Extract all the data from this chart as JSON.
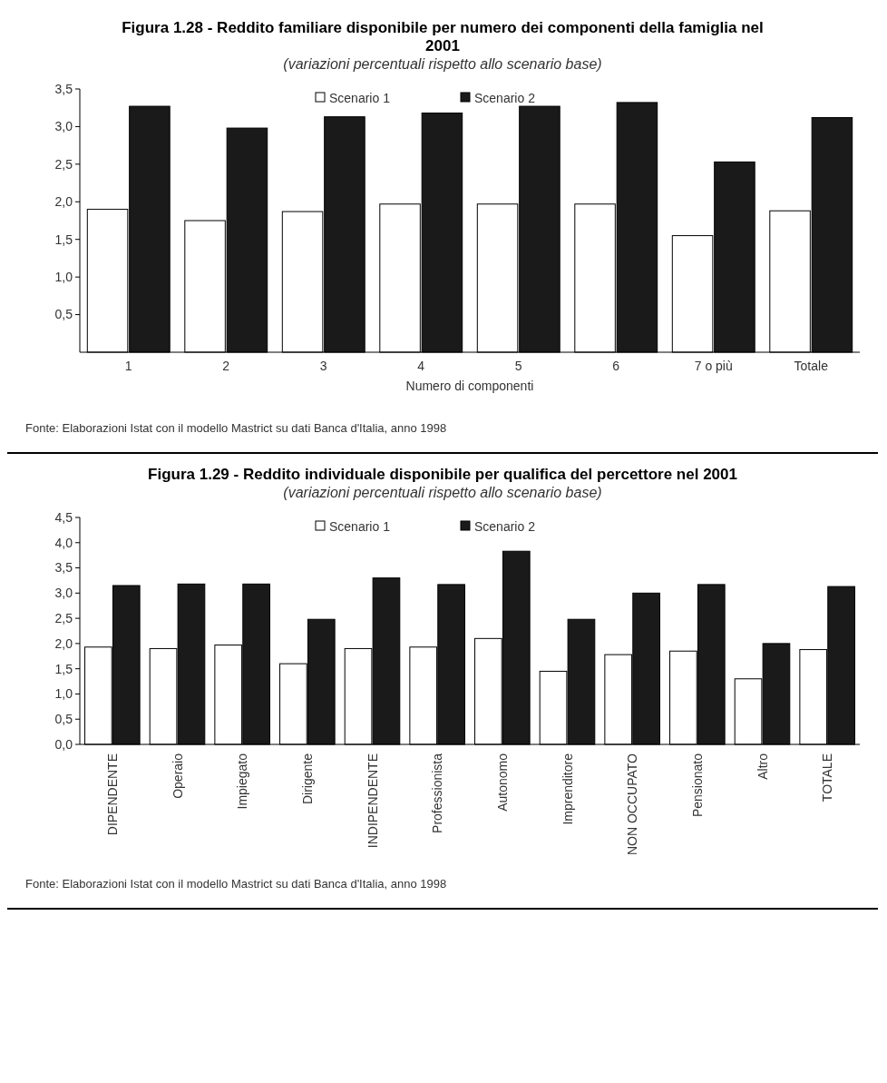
{
  "chart_data": [
    {
      "type": "bar",
      "title": "Figura 1.28 - Reddito familiare disponibile per numero dei componenti della famiglia nel 2001",
      "subtitle": "(variazioni percentuali rispetto allo scenario base)",
      "xlabel": "Numero di componenti",
      "categories": [
        "1",
        "2",
        "3",
        "4",
        "5",
        "6",
        "7 o più",
        "Totale"
      ],
      "series": [
        {
          "name": "Scenario 1",
          "color": "#ffffff",
          "values": [
            1.9,
            1.75,
            1.87,
            1.97,
            1.97,
            1.97,
            1.55,
            1.88
          ]
        },
        {
          "name": "Scenario 2",
          "color": "#1a1a1a",
          "values": [
            3.27,
            2.98,
            3.13,
            3.18,
            3.27,
            3.32,
            2.53,
            3.12
          ]
        }
      ],
      "ylim": [
        0,
        3.5
      ],
      "yticks": [
        {
          "value": 0.5,
          "label": "0,5"
        },
        {
          "value": 1,
          "label": "1,0"
        },
        {
          "value": 1.5,
          "label": "1,5"
        },
        {
          "value": 2,
          "label": "2,0"
        },
        {
          "value": 2.5,
          "label": "2,5"
        },
        {
          "value": 3,
          "label": "3,0"
        },
        {
          "value": 3.5,
          "label": "3,5"
        }
      ],
      "legend": "top",
      "grid": false,
      "annotations": [
        "Fonte: Elaborazioni Istat con il modello Mastrict su dati Banca d'Italia, anno 1998"
      ]
    },
    {
      "type": "bar",
      "title": "Figura 1.29 - Reddito individuale disponibile per qualifica del percettore nel 2001",
      "subtitle": "(variazioni percentuali rispetto allo scenario base)",
      "categories": [
        "DIPENDENTE",
        "Operaio",
        "Impiegato",
        "Dirigente",
        "INDIPENDENTE",
        "Professionista",
        "Autonomo",
        "Imprenditore",
        "NON OCCUPATO",
        "Pensionato",
        "Altro",
        "TOTALE"
      ],
      "series": [
        {
          "name": "Scenario 1",
          "color": "#ffffff",
          "values": [
            1.93,
            1.9,
            1.97,
            1.6,
            1.9,
            1.93,
            2.1,
            1.45,
            1.78,
            1.85,
            1.3,
            1.88
          ]
        },
        {
          "name": "Scenario 2",
          "color": "#1a1a1a",
          "values": [
            3.15,
            3.18,
            3.18,
            2.48,
            3.3,
            3.17,
            3.83,
            2.48,
            3.0,
            3.17,
            2.0,
            3.13
          ]
        }
      ],
      "ylim": [
        0,
        4.5
      ],
      "yticks": [
        {
          "value": 0,
          "label": "0,0"
        },
        {
          "value": 0.5,
          "label": "0,5"
        },
        {
          "value": 1,
          "label": "1,0"
        },
        {
          "value": 1.5,
          "label": "1,5"
        },
        {
          "value": 2,
          "label": "2,0"
        },
        {
          "value": 2.5,
          "label": "2,5"
        },
        {
          "value": 3,
          "label": "3,0"
        },
        {
          "value": 3.5,
          "label": "3,5"
        },
        {
          "value": 4,
          "label": "4,0"
        },
        {
          "value": 4.5,
          "label": "4,5"
        }
      ],
      "legend": "top",
      "grid": false,
      "annotations": [
        "Fonte: Elaborazioni Istat con il modello Mastrict su dati Banca d'Italia, anno 1998"
      ]
    }
  ]
}
